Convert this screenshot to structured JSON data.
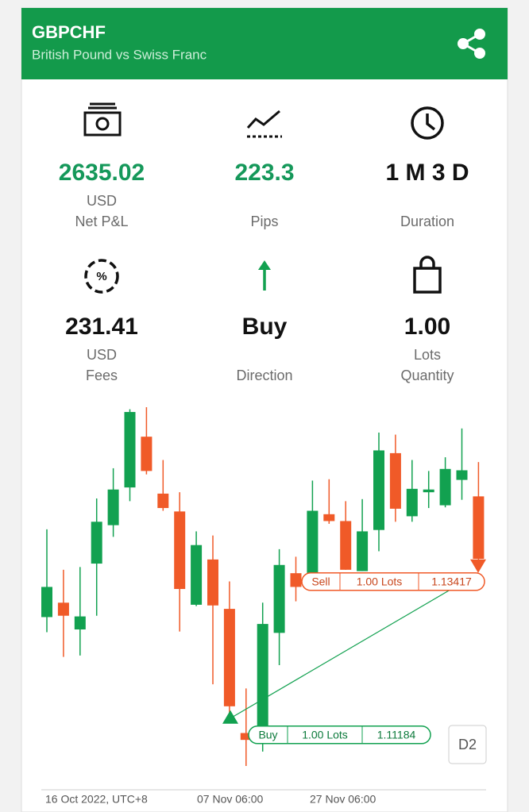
{
  "header": {
    "symbol": "GBPCHF",
    "description": "British Pound vs Swiss Franc"
  },
  "stats": [
    {
      "value": "2635.02",
      "unit": "USD",
      "label": "Net P&L",
      "color": "#15985a"
    },
    {
      "value": "223.3",
      "label": "Pips",
      "color": "#15985a"
    },
    {
      "value": "1 M 3 D",
      "label": "Duration",
      "color": "#111111"
    },
    {
      "value": "231.41",
      "unit": "USD",
      "label": "Fees",
      "color": "#111111"
    },
    {
      "value": "Buy",
      "label": "Direction",
      "color": "#111111"
    },
    {
      "value": "1.00",
      "unit": "Lots",
      "label": "Quantity",
      "color": "#111111"
    }
  ],
  "chart_data": {
    "type": "candlestick",
    "x_labels": [
      "16 Oct 2022, UTC+8",
      "07 Nov 06:00",
      "27 Nov 06:00"
    ],
    "up_color": "#12a150",
    "down_color": "#f05a28",
    "open": [
      1.129,
      1.1311,
      1.1272,
      1.1368,
      1.1424,
      1.1479,
      1.1553,
      1.147,
      1.1444,
      1.1308,
      1.1374,
      1.1302,
      1.1121,
      1.1131,
      1.1267,
      1.1354,
      1.1354,
      1.144,
      1.143,
      1.1357,
      1.1417,
      1.1529,
      1.1437,
      1.1472,
      1.1453,
      1.149,
      1.1466
    ],
    "high": [
      1.1418,
      1.1359,
      1.1363,
      1.1463,
      1.1507,
      1.1593,
      1.1596,
      1.1519,
      1.1472,
      1.1415,
      1.1409,
      1.1342,
      1.1186,
      1.1311,
      1.1389,
      1.1378,
      1.1489,
      1.1491,
      1.1459,
      1.1462,
      1.1559,
      1.1556,
      1.1519,
      1.1503,
      1.1523,
      1.1565,
      1.1516
    ],
    "low": [
      1.1268,
      1.1232,
      1.1234,
      1.1292,
      1.1407,
      1.1459,
      1.1498,
      1.1445,
      1.1269,
      1.1306,
      1.1192,
      1.1137,
      1.1073,
      1.1094,
      1.122,
      1.1313,
      1.1345,
      1.1426,
      1.1359,
      1.1357,
      1.1386,
      1.1429,
      1.1429,
      1.1449,
      1.145,
      1.1461,
      1.1368
    ],
    "close": [
      1.1334,
      1.1292,
      1.1291,
      1.1429,
      1.1476,
      1.1589,
      1.1503,
      1.1449,
      1.1331,
      1.1395,
      1.1307,
      1.116,
      1.1111,
      1.128,
      1.1366,
      1.1334,
      1.1445,
      1.143,
      1.1359,
      1.1415,
      1.1533,
      1.1448,
      1.1477,
      1.1476,
      1.1506,
      1.1504,
      1.1375
    ],
    "entry": {
      "side": "Buy",
      "lots": "1.00 Lots",
      "price": 1.11184,
      "color": "#12a150"
    },
    "exit": {
      "side": "Sell",
      "lots": "1.00 Lots",
      "price": 1.13417,
      "color": "#f05a28"
    }
  },
  "timeframe": "D2"
}
